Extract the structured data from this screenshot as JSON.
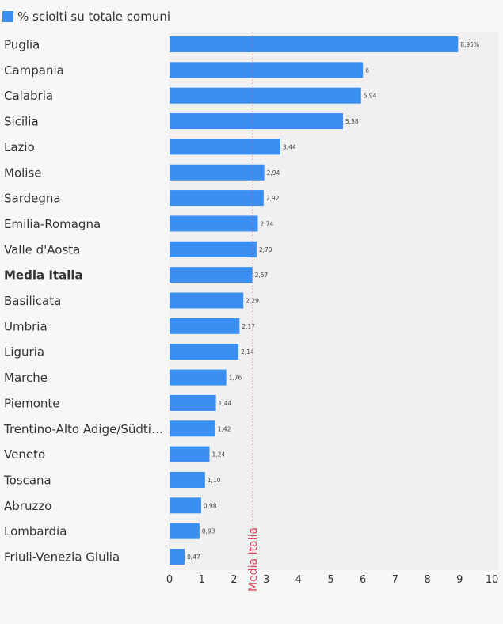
{
  "chart_data": {
    "type": "bar",
    "orientation": "horizontal",
    "legend": {
      "label": "% sciolti su totale comuni",
      "placement": "top-left"
    },
    "categories": [
      "Puglia",
      "Campania",
      "Calabria",
      "Sicilia",
      "Lazio",
      "Molise",
      "Sardegna",
      "Emilia-Romagna",
      "Valle d'Aosta",
      "Media Italia",
      "Basilicata",
      "Umbria",
      "Liguria",
      "Marche",
      "Piemonte",
      "Trentino-Alto Adige/Südti…",
      "Veneto",
      "Toscana",
      "Abruzzo",
      "Lombardia",
      "Friuli-Venezia Giulia"
    ],
    "values": [
      8.95,
      6,
      5.94,
      5.38,
      3.44,
      2.94,
      2.92,
      2.74,
      2.7,
      2.57,
      2.29,
      2.17,
      2.14,
      1.76,
      1.44,
      1.42,
      1.24,
      1.1,
      0.98,
      0.93,
      0.47
    ],
    "data_labels": [
      "8,95%",
      "6",
      "5,94",
      "5,38",
      "3,44",
      "2,94",
      "2,92",
      "2,74",
      "2,70",
      "2,57",
      "2,29",
      "2,17",
      "2,14",
      "1,76",
      "1,44",
      "1,42",
      "1,24",
      "1,10",
      "0,98",
      "0,93",
      "0,47"
    ],
    "highlight_category": "Media Italia",
    "xlim": [
      0,
      10
    ],
    "xticks": [
      0,
      1,
      2,
      3,
      4,
      5,
      6,
      7,
      8,
      9,
      10
    ],
    "reference_line": {
      "value": 2.57,
      "label": "Media Italia",
      "color": "#e05a6e"
    },
    "colors": {
      "bar": "#3a8ff0",
      "plot_bg": "#f0f0f0",
      "page_bg": "#f7f7f7",
      "text": "#333333",
      "reference": "#d9435c"
    },
    "grid": false
  }
}
